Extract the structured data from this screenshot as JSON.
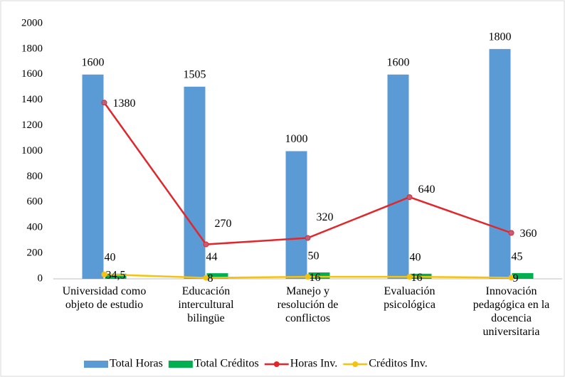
{
  "chart_data": {
    "type": "bar",
    "categories": [
      "Universidad como objeto de estudio",
      "Educación intercultural bilingüe",
      "Manejo y resolución de conflictos",
      "Evaluación psicológica",
      "Innovación pedagógica en la docencia universitaria"
    ],
    "series": [
      {
        "name": "Total Horas",
        "type": "bar",
        "color": "#5b9bd5",
        "values": [
          1600,
          1505,
          1000,
          1600,
          1800
        ]
      },
      {
        "name": "Total Créditos",
        "type": "bar",
        "color": "#00b050",
        "values": [
          40,
          44,
          50,
          40,
          45
        ]
      },
      {
        "name": "Horas Inv.",
        "type": "line",
        "color": "#e0272b",
        "values": [
          1380,
          270,
          320,
          640,
          360
        ]
      },
      {
        "name": "Créditos Inv.",
        "type": "line",
        "color": "#f5c211",
        "values": [
          34.5,
          8,
          16,
          16,
          9
        ],
        "value_labels": [
          "34,5",
          "8",
          "16",
          "16",
          "9"
        ]
      }
    ],
    "ylim": [
      0,
      2000
    ],
    "yticks": [
      0,
      200,
      400,
      600,
      800,
      1000,
      1200,
      1400,
      1600,
      1800,
      2000
    ],
    "grid": false,
    "legend": "bottom"
  }
}
